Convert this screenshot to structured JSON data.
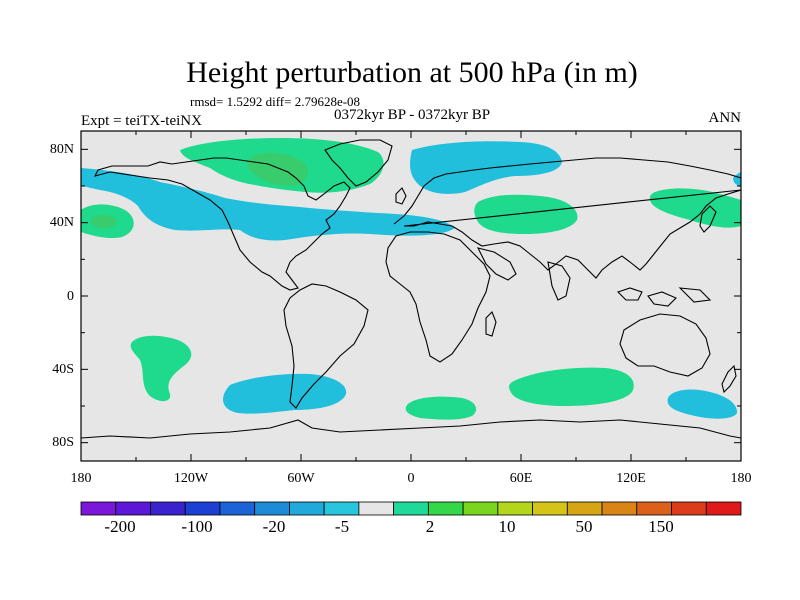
{
  "title": "Height perturbation at 500 hPa (in m)",
  "stats_line": "rmsd= 1.5292 diff= 2.79628e-08",
  "left_label": "Expt = teiTX-teiNX",
  "center_label": "0372kyr BP - 0372kyr BP",
  "right_label": "ANN",
  "x_ticks": [
    "180",
    "120W",
    "60W",
    "0",
    "60E",
    "120E",
    "180"
  ],
  "y_ticks": [
    "80N",
    "40N",
    "0",
    "40S",
    "80S"
  ],
  "colorbar": {
    "labels": [
      "-200",
      "-100",
      "-20",
      "-5",
      "2",
      "10",
      "50",
      "150"
    ],
    "colors": [
      "#7b17d9",
      "#5d17d6",
      "#3a22cf",
      "#1c3fd4",
      "#1c63d8",
      "#1d8bd8",
      "#22a9db",
      "#28c6dc",
      "#e6e6e6",
      "#1fd99a",
      "#34d74a",
      "#78d61c",
      "#b4d61a",
      "#d4c417",
      "#d6a516",
      "#d98516",
      "#db6019",
      "#dd3c1c",
      "#e01a1a"
    ]
  },
  "palette": {
    "background": "#e6e6e6",
    "negative": "#22bfdd",
    "negative_dark": "#1da9db",
    "positive": "#1fd98c",
    "positive_dark": "#38cc6c"
  }
}
